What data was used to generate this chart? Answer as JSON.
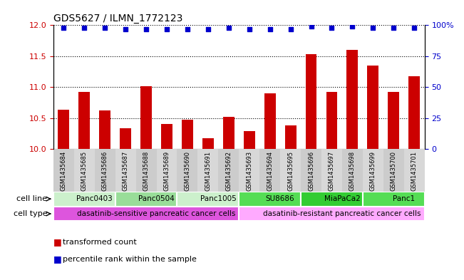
{
  "title": "GDS5627 / ILMN_1772123",
  "samples": [
    "GSM1435684",
    "GSM1435685",
    "GSM1435686",
    "GSM1435687",
    "GSM1435688",
    "GSM1435689",
    "GSM1435690",
    "GSM1435691",
    "GSM1435692",
    "GSM1435693",
    "GSM1435694",
    "GSM1435695",
    "GSM1435696",
    "GSM1435697",
    "GSM1435698",
    "GSM1435699",
    "GSM1435700",
    "GSM1435701"
  ],
  "bar_values": [
    10.63,
    10.92,
    10.62,
    10.33,
    11.01,
    10.4,
    10.47,
    10.17,
    10.52,
    10.29,
    10.9,
    10.38,
    11.53,
    10.92,
    11.6,
    11.35,
    10.92,
    11.17
  ],
  "percentile_values": [
    98,
    98,
    98,
    97,
    97,
    97,
    97,
    97,
    98,
    97,
    97,
    97,
    99,
    98,
    99,
    98,
    98,
    98
  ],
  "bar_color": "#cc0000",
  "percentile_color": "#0000cc",
  "ylim_left": [
    10,
    12
  ],
  "ylim_right": [
    0,
    100
  ],
  "yticks_left": [
    10,
    10.5,
    11,
    11.5,
    12
  ],
  "yticks_right": [
    0,
    25,
    50,
    75,
    100
  ],
  "cell_lines": [
    {
      "label": "Panc0403",
      "start": 0,
      "end": 3,
      "color": "#ccf0cc"
    },
    {
      "label": "Panc0504",
      "start": 3,
      "end": 6,
      "color": "#99dd99"
    },
    {
      "label": "Panc1005",
      "start": 6,
      "end": 9,
      "color": "#ccf0cc"
    },
    {
      "label": "SU8686",
      "start": 9,
      "end": 12,
      "color": "#55dd55"
    },
    {
      "label": "MiaPaCa2",
      "start": 12,
      "end": 15,
      "color": "#33cc33"
    },
    {
      "label": "Panc1",
      "start": 15,
      "end": 18,
      "color": "#55dd55"
    }
  ],
  "cell_types": [
    {
      "label": "dasatinib-sensitive pancreatic cancer cells",
      "start": 0,
      "end": 9,
      "color": "#dd55dd"
    },
    {
      "label": "dasatinib-resistant pancreatic cancer cells",
      "start": 9,
      "end": 18,
      "color": "#ffaaff"
    }
  ],
  "legend_items": [
    {
      "label": "transformed count",
      "color": "#cc0000"
    },
    {
      "label": "percentile rank within the sample",
      "color": "#0000cc"
    }
  ],
  "cell_line_label": "cell line",
  "cell_type_label": "cell type",
  "bar_width": 0.55,
  "sample_label_bg": "#cccccc",
  "background_color": "#ffffff"
}
